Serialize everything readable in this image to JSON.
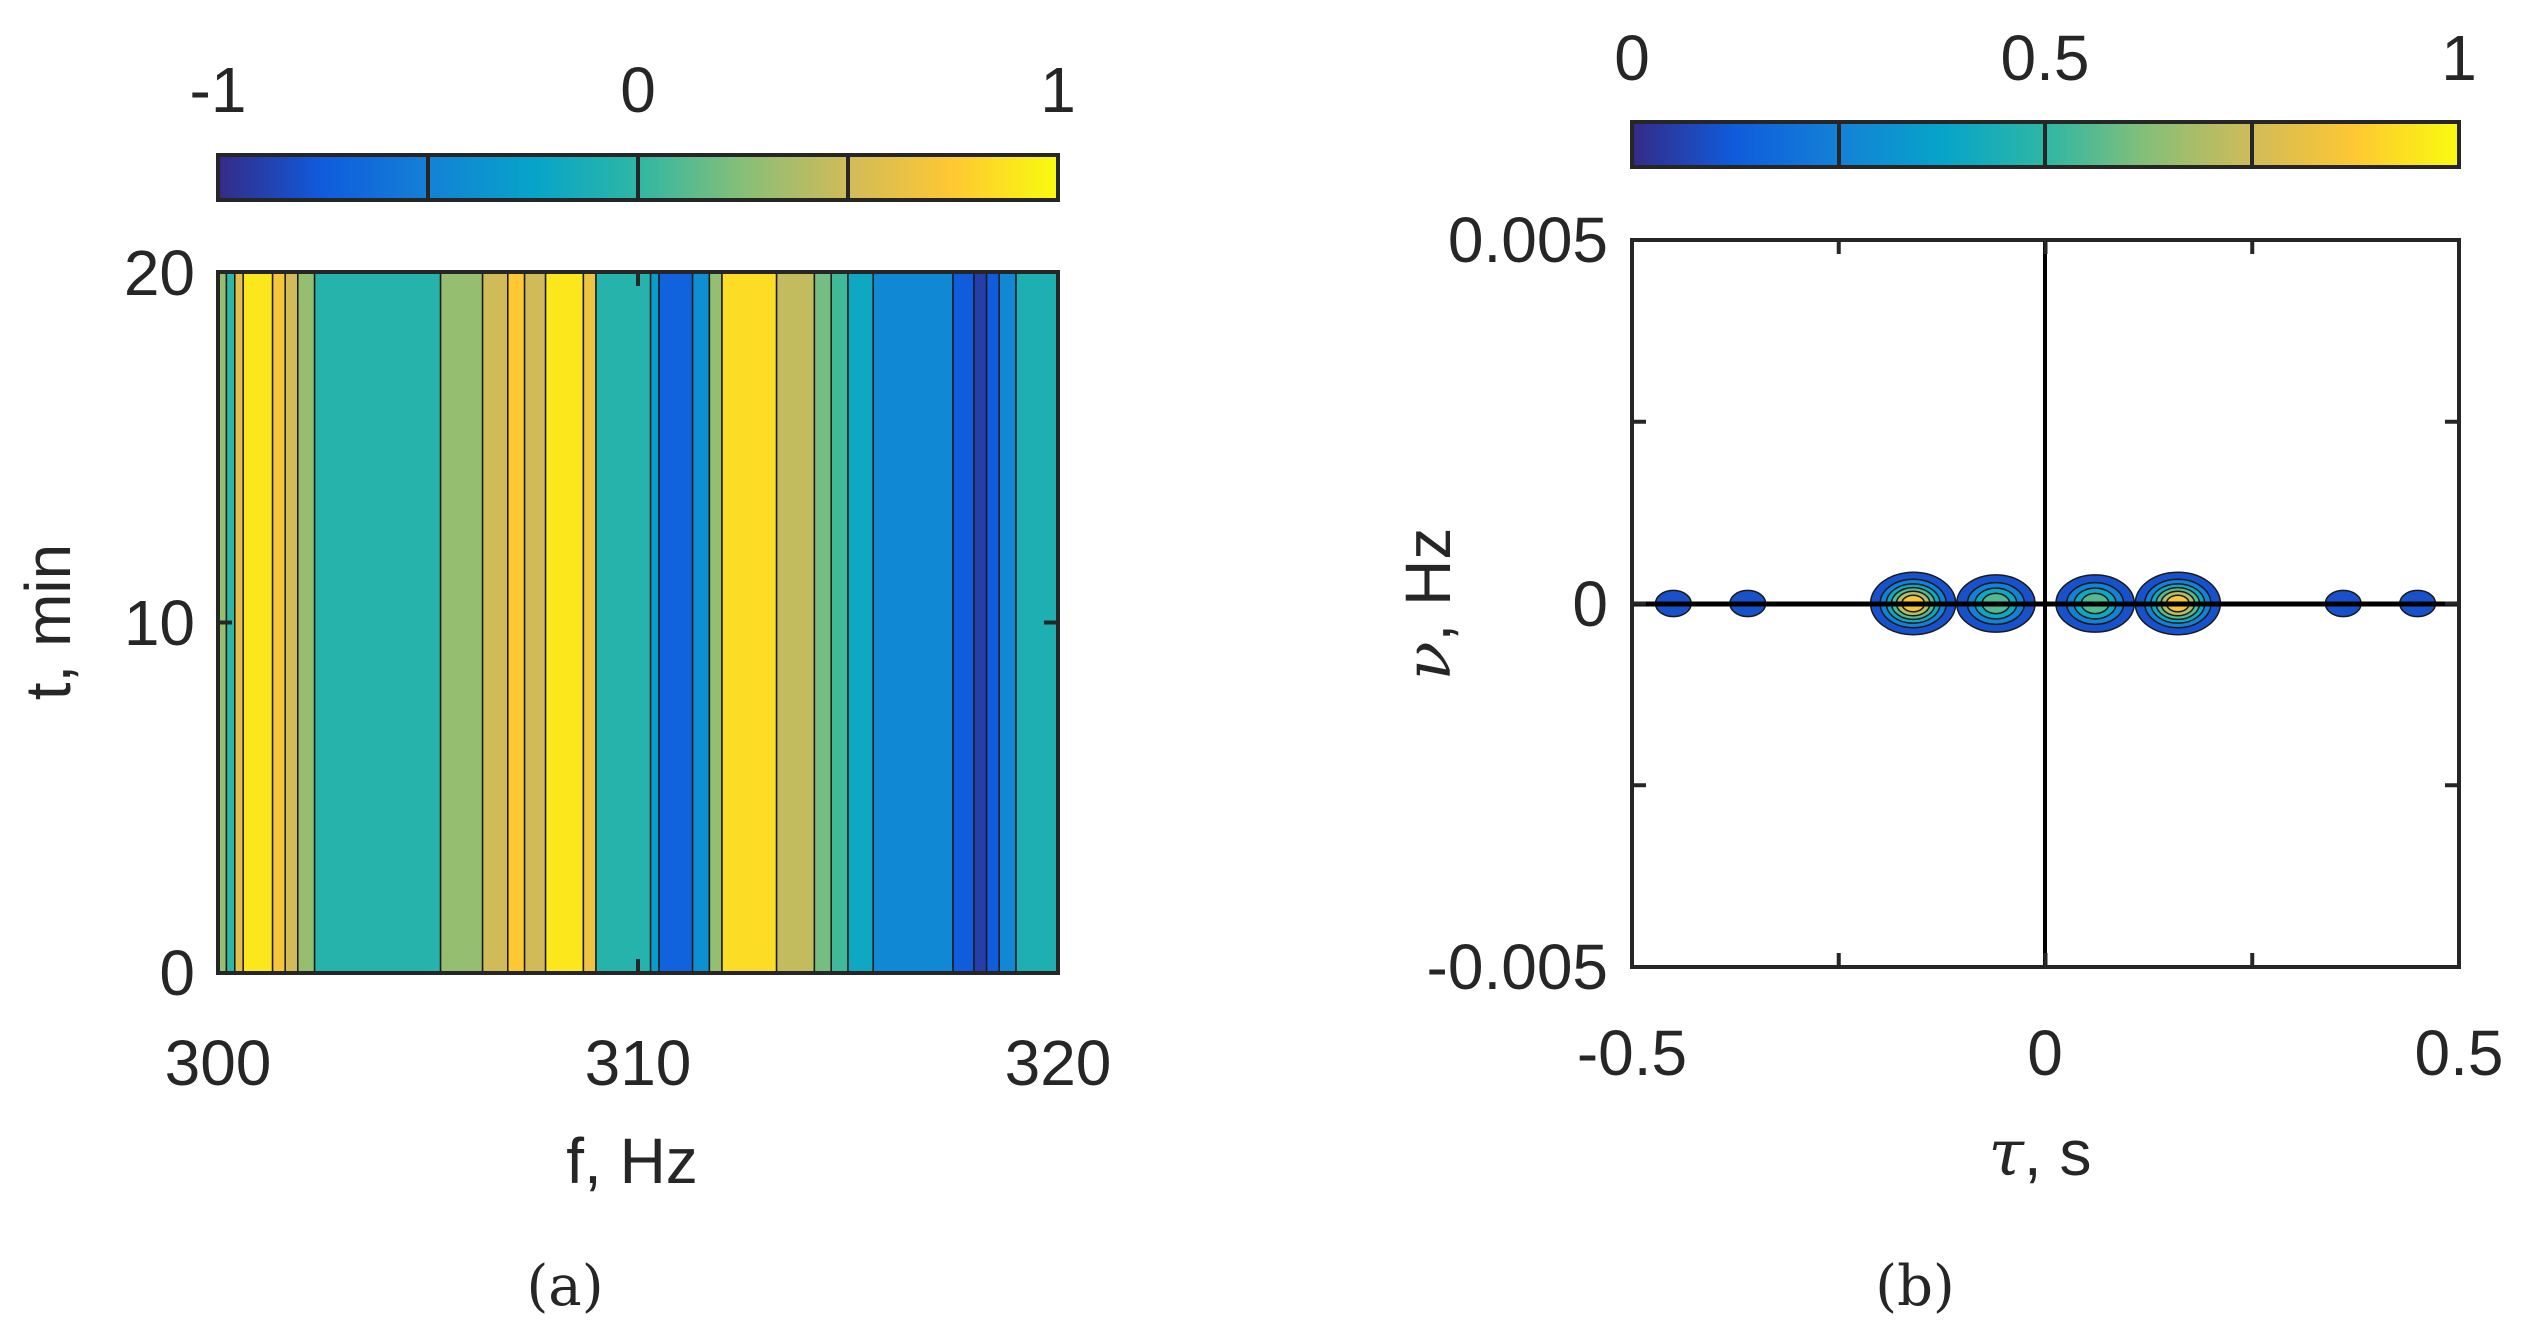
{
  "chart_data": [
    {
      "type": "heatmap",
      "panel": "(a)",
      "xlabel": "f, Hz",
      "ylabel": "t, min",
      "xlim": [
        300,
        320
      ],
      "ylim": [
        0,
        20
      ],
      "xticks": [
        "300",
        "310",
        "320"
      ],
      "yticks": [
        "0",
        "10",
        "20"
      ],
      "colorbar": {
        "range": [
          -1,
          1
        ],
        "ticks": [
          "-1",
          "0",
          "1"
        ]
      },
      "description": "Value constant in t; varies with f only",
      "bands": [
        {
          "f0": 300.0,
          "f1": 300.2,
          "value": 0.3
        },
        {
          "f0": 300.2,
          "f1": 300.4,
          "value": 0.0
        },
        {
          "f0": 300.4,
          "f1": 300.6,
          "value": 0.6
        },
        {
          "f0": 300.6,
          "f1": 301.3,
          "value": 0.9
        },
        {
          "f0": 301.3,
          "f1": 301.6,
          "value": 0.7
        },
        {
          "f0": 301.6,
          "f1": 301.9,
          "value": 0.5
        },
        {
          "f0": 301.9,
          "f1": 302.3,
          "value": 0.3
        },
        {
          "f0": 302.3,
          "f1": 305.3,
          "value": -0.05
        },
        {
          "f0": 305.3,
          "f1": 306.3,
          "value": 0.3
        },
        {
          "f0": 306.3,
          "f1": 306.9,
          "value": 0.5
        },
        {
          "f0": 306.9,
          "f1": 307.3,
          "value": 0.75
        },
        {
          "f0": 307.3,
          "f1": 307.8,
          "value": 0.5
        },
        {
          "f0": 307.8,
          "f1": 308.7,
          "value": 0.9
        },
        {
          "f0": 308.7,
          "f1": 309.0,
          "value": 0.65
        },
        {
          "f0": 309.0,
          "f1": 310.3,
          "value": -0.05
        },
        {
          "f0": 310.3,
          "f1": 310.5,
          "value": -0.3
        },
        {
          "f0": 310.5,
          "f1": 311.3,
          "value": -0.7
        },
        {
          "f0": 311.3,
          "f1": 311.7,
          "value": -0.4
        },
        {
          "f0": 311.7,
          "f1": 312.0,
          "value": 0.3
        },
        {
          "f0": 312.0,
          "f1": 313.3,
          "value": 0.85
        },
        {
          "f0": 313.3,
          "f1": 314.2,
          "value": 0.45
        },
        {
          "f0": 314.2,
          "f1": 314.6,
          "value": 0.2
        },
        {
          "f0": 314.6,
          "f1": 315.0,
          "value": 0.05
        },
        {
          "f0": 315.0,
          "f1": 315.6,
          "value": -0.2
        },
        {
          "f0": 315.6,
          "f1": 317.5,
          "value": -0.45
        },
        {
          "f0": 317.5,
          "f1": 318.0,
          "value": -0.75
        },
        {
          "f0": 318.0,
          "f1": 318.3,
          "value": -0.9
        },
        {
          "f0": 318.3,
          "f1": 318.6,
          "value": -0.75
        },
        {
          "f0": 318.6,
          "f1": 319.0,
          "value": -0.45
        },
        {
          "f0": 319.0,
          "f1": 320.0,
          "value": -0.1
        }
      ]
    },
    {
      "type": "heatmap",
      "subtype": "filled-contour",
      "panel": "(b)",
      "xlabel_symbol": "τ",
      "xlabel_unit": ", s",
      "ylabel_symbol": "ν",
      "ylabel_unit": ", Hz",
      "xlim": [
        -0.5,
        0.5
      ],
      "ylim": [
        -0.005,
        0.005
      ],
      "xticks": [
        "-0.5",
        "0",
        "0.5"
      ],
      "yticks": [
        "-0.005",
        "0",
        "0.005"
      ],
      "colorbar": {
        "range": [
          0,
          1
        ],
        "ticks": [
          "0",
          "0.5",
          "1"
        ]
      },
      "axis_lines": {
        "x0": true,
        "y0": true
      },
      "contour_levels": [
        0.1,
        0.25,
        0.4,
        0.55,
        0.7,
        0.85
      ],
      "peaks": [
        {
          "tau": -0.45,
          "nu": 0,
          "value": 0.15
        },
        {
          "tau": -0.36,
          "nu": 0,
          "value": 0.15
        },
        {
          "tau": -0.16,
          "nu": 0,
          "value": 1.0
        },
        {
          "tau": -0.06,
          "nu": 0,
          "value": 0.7
        },
        {
          "tau": 0.06,
          "nu": 0,
          "value": 0.7
        },
        {
          "tau": 0.16,
          "nu": 0,
          "value": 1.0
        },
        {
          "tau": 0.36,
          "nu": 0,
          "value": 0.15
        },
        {
          "tau": 0.45,
          "nu": 0,
          "value": 0.15
        }
      ]
    }
  ],
  "captions": {
    "a": "(a)",
    "b": "(b)"
  },
  "colors": {
    "axis": "#262626",
    "parula": [
      "#352a87",
      "#0f5cdd",
      "#1481d6",
      "#06a4ca",
      "#2eb7a4",
      "#87bf77",
      "#d1bb59",
      "#fec832",
      "#f9fb0e"
    ]
  }
}
